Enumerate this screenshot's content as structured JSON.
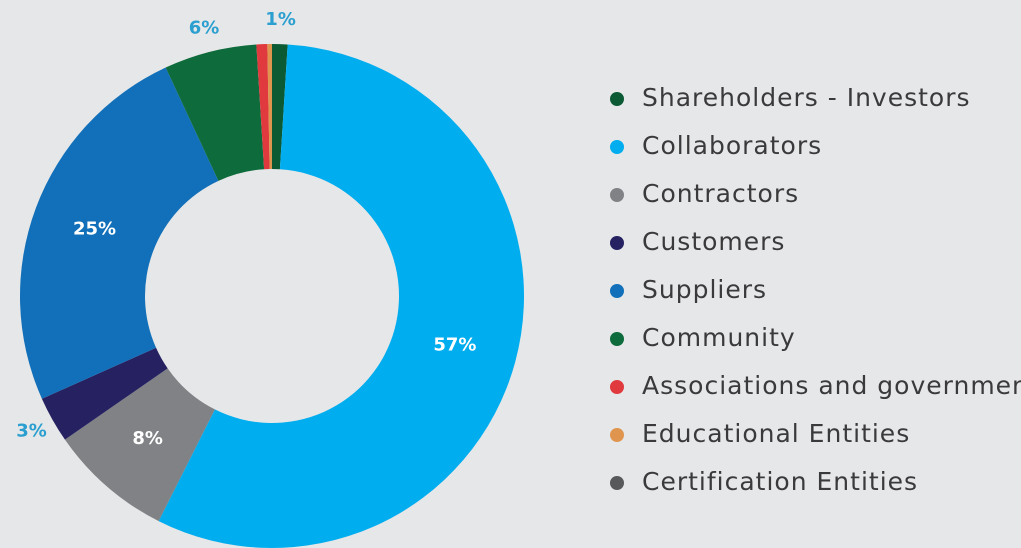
{
  "chart_data": {
    "type": "donut",
    "categories": [
      "Shareholders - Investors",
      "Collaborators",
      "Contractors",
      "Customers",
      "Suppliers",
      "Community",
      "Associations and government",
      "Educational Entities",
      "Certification Entities"
    ],
    "values": [
      1,
      57,
      8,
      3,
      25,
      6,
      0.7,
      0.3,
      0
    ],
    "value_labels": [
      "1%",
      "57%",
      "8%",
      "3%",
      "25%",
      "6%",
      null,
      null,
      null
    ],
    "colors": [
      "#0b5a34",
      "#00adef",
      "#808285",
      "#262262",
      "#1170b9",
      "#0e6b3b",
      "#e03a3e",
      "#e0954f",
      "#58595b"
    ]
  }
}
